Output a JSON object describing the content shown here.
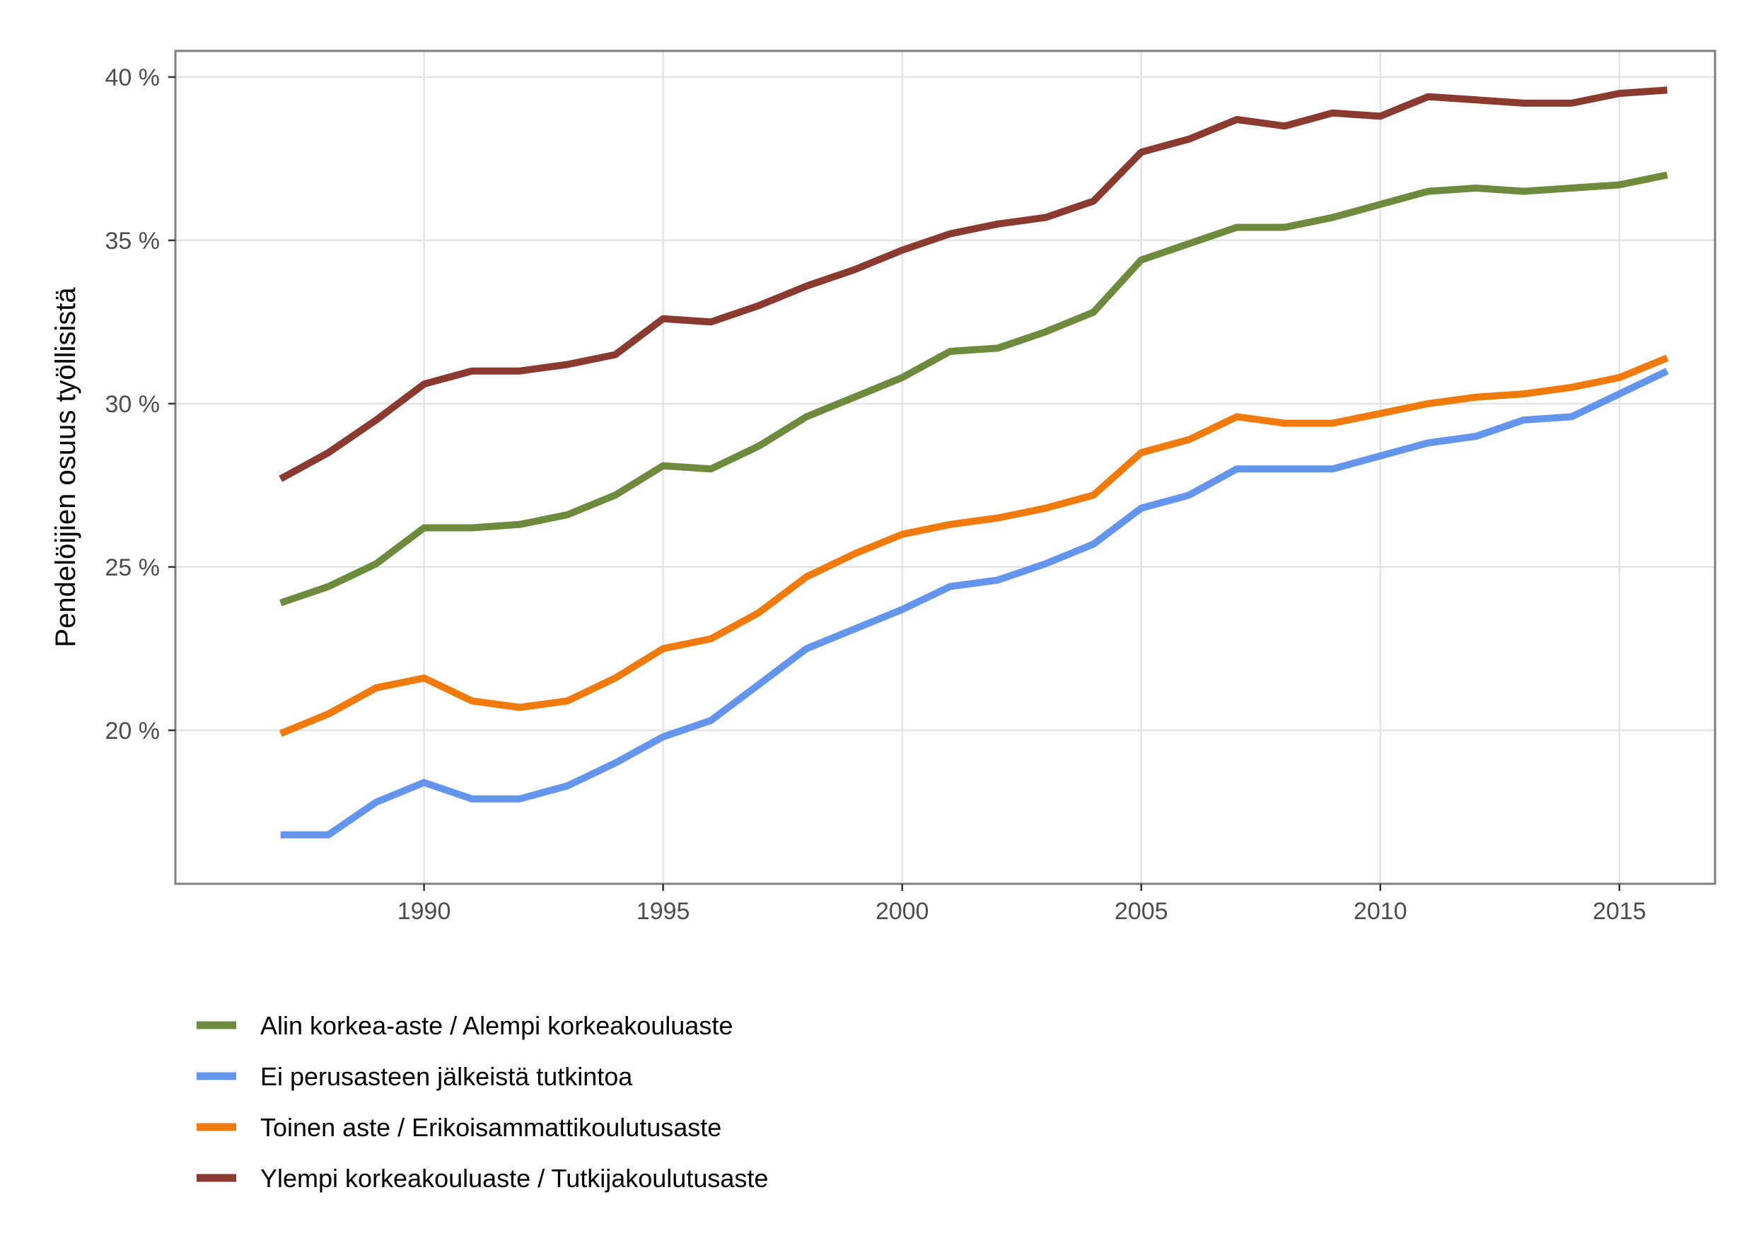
{
  "chart_data": {
    "type": "line",
    "ylabel": "Pendelöijien osuus työllisistä",
    "xlabel": "",
    "xlim": [
      1984.8,
      2017.0
    ],
    "ylim": [
      15.3,
      40.8
    ],
    "x_ticks": [
      1990,
      1995,
      2000,
      2005,
      2010,
      2015
    ],
    "x_tick_labels": [
      "1990",
      "1995",
      "2000",
      "2005",
      "2010",
      "2015"
    ],
    "y_ticks": [
      20,
      25,
      30,
      35,
      40
    ],
    "y_tick_labels": [
      "20 %",
      "25 %",
      "30 %",
      "35 %",
      "40 %"
    ],
    "grid": true,
    "legend_position": "bottom",
    "x": [
      1987,
      1988,
      1989,
      1990,
      1991,
      1992,
      1993,
      1994,
      1995,
      1996,
      1997,
      1998,
      1999,
      2000,
      2001,
      2002,
      2003,
      2004,
      2005,
      2006,
      2007,
      2008,
      2009,
      2010,
      2011,
      2012,
      2013,
      2014,
      2015,
      2016
    ],
    "series": [
      {
        "name": "Alin korkea-aste / Alempi korkeakouluaste",
        "color": "#6e8b3d",
        "values": [
          23.9,
          24.4,
          25.1,
          26.2,
          26.2,
          26.3,
          26.6,
          27.2,
          28.1,
          28.0,
          28.7,
          29.6,
          30.2,
          30.8,
          31.6,
          31.7,
          32.2,
          32.8,
          34.4,
          34.9,
          35.4,
          35.4,
          35.7,
          36.1,
          36.5,
          36.6,
          36.5,
          36.6,
          36.7,
          37.0
        ]
      },
      {
        "name": "Ei perusasteen jälkeistä tutkintoa",
        "color": "#6495ed",
        "values": [
          16.8,
          16.8,
          17.8,
          18.4,
          17.9,
          17.9,
          18.3,
          19.0,
          19.8,
          20.3,
          21.4,
          22.5,
          23.1,
          23.7,
          24.4,
          24.6,
          25.1,
          25.7,
          26.8,
          27.2,
          28.0,
          28.0,
          28.0,
          28.4,
          28.8,
          29.0,
          29.5,
          29.6,
          30.3,
          31.0
        ]
      },
      {
        "name": "Toinen aste / Erikoisammattikoulutusaste",
        "color": "#f07a0c",
        "values": [
          19.9,
          20.5,
          21.3,
          21.6,
          20.9,
          20.7,
          20.9,
          21.6,
          22.5,
          22.8,
          23.6,
          24.7,
          25.4,
          26.0,
          26.3,
          26.5,
          26.8,
          27.2,
          28.5,
          28.9,
          29.6,
          29.4,
          29.4,
          29.7,
          30.0,
          30.2,
          30.3,
          30.5,
          30.8,
          31.4
        ]
      },
      {
        "name": "Ylempi korkeakouluaste / Tutkijakoulutusaste",
        "color": "#8b3a2f",
        "values": [
          27.7,
          28.5,
          29.5,
          30.6,
          31.0,
          31.0,
          31.2,
          31.5,
          32.6,
          32.5,
          33.0,
          33.6,
          34.1,
          34.7,
          35.2,
          35.5,
          35.7,
          36.2,
          37.7,
          38.1,
          38.7,
          38.5,
          38.9,
          38.8,
          39.4,
          39.3,
          39.2,
          39.2,
          39.5,
          39.6
        ]
      }
    ]
  }
}
